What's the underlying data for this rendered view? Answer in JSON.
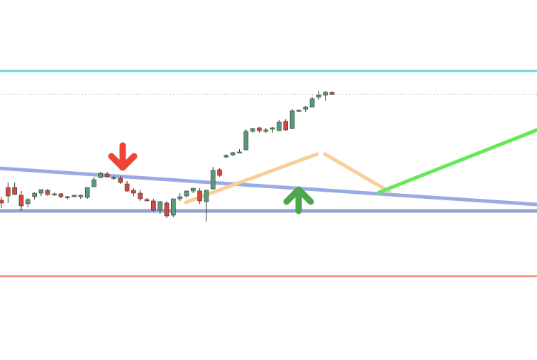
{
  "chart_data": {
    "type": "candlestick",
    "colors": {
      "background": "#ffffff",
      "up_candle": "#5b9a78",
      "down_candle": "#d9453c",
      "wick": "#333333",
      "resistance_line": "#6fd6d6",
      "support_line": "#f08c80",
      "horizontal_blue": "#94a3d7",
      "trend_blue": "#9aabe3",
      "last_price_dotted": "#c8785a",
      "orange_path": "#f9cf97",
      "green_projection": "#66e85a",
      "red_arrow": "#ee4438",
      "green_arrow": "#4ca64c"
    },
    "candles": [
      {
        "o": 15,
        "h": 20,
        "l": 4,
        "c": 11
      },
      {
        "o": 33,
        "h": 40,
        "l": 11,
        "c": 21
      },
      {
        "o": 33,
        "h": 40,
        "l": 25,
        "c": 23
      },
      {
        "o": 22,
        "h": 28,
        "l": 0,
        "c": 7
      },
      {
        "o": 10,
        "h": 18,
        "l": 5,
        "c": 16
      },
      {
        "o": 20,
        "h": 26,
        "l": 16,
        "c": 25
      },
      {
        "o": 25,
        "h": 30,
        "l": 21,
        "c": 30
      },
      {
        "o": 29,
        "h": 31,
        "l": 21,
        "c": 23
      },
      {
        "o": 24,
        "h": 26,
        "l": 21,
        "c": 24
      },
      {
        "o": 24,
        "h": 25,
        "l": 18,
        "c": 20
      },
      {
        "o": 20,
        "h": 21,
        "l": 16,
        "c": 19
      },
      {
        "o": 20,
        "h": 23,
        "l": 19,
        "c": 22
      },
      {
        "o": 20,
        "h": 23,
        "l": 17,
        "c": 22
      },
      {
        "o": 19,
        "h": 30,
        "l": 17,
        "c": 33
      },
      {
        "o": 34,
        "h": 48,
        "l": 34,
        "c": 44
      },
      {
        "o": 47,
        "h": 55,
        "l": 46,
        "c": 53
      },
      {
        "o": 52,
        "h": 55,
        "l": 47,
        "c": 48
      },
      {
        "o": 46,
        "h": 49,
        "l": 44,
        "c": 47
      },
      {
        "o": 46,
        "h": 49,
        "l": 38,
        "c": 40
      },
      {
        "o": 38,
        "h": 42,
        "l": 27,
        "c": 28
      },
      {
        "o": 29,
        "h": 32,
        "l": 20,
        "c": 25
      },
      {
        "o": 25,
        "h": 30,
        "l": 14,
        "c": 17
      },
      {
        "o": 16,
        "h": 18,
        "l": 14,
        "c": 14
      },
      {
        "o": 14,
        "h": 17,
        "l": -1,
        "c": 1
      },
      {
        "o": 1,
        "h": 14,
        "l": -4,
        "c": 13
      },
      {
        "o": 11,
        "h": 14,
        "l": -10,
        "c": -7
      },
      {
        "o": -6,
        "h": 15,
        "l": -9,
        "c": 17
      },
      {
        "o": 17,
        "h": 25,
        "l": 14,
        "c": 20
      },
      {
        "o": 21,
        "h": 29,
        "l": 19,
        "c": 28
      },
      {
        "o": 28,
        "h": 32,
        "l": 25,
        "c": 32
      },
      {
        "o": 28,
        "h": 32,
        "l": 10,
        "c": 14
      },
      {
        "o": 13,
        "h": 30,
        "l": -15,
        "c": 29
      },
      {
        "o": 31,
        "h": 62,
        "l": 30,
        "c": 57
      },
      {
        "o": 58,
        "h": 60,
        "l": 48,
        "c": 50
      },
      {
        "o": 76,
        "h": 80,
        "l": 74,
        "c": 78
      },
      {
        "o": 79,
        "h": 83,
        "l": 77,
        "c": 82
      },
      {
        "o": 83,
        "h": 87,
        "l": 81,
        "c": 83
      },
      {
        "o": 86,
        "h": 115,
        "l": 85,
        "c": 112
      },
      {
        "o": 112,
        "h": 117,
        "l": 110,
        "c": 116
      },
      {
        "o": 117,
        "h": 118,
        "l": 110,
        "c": 113
      },
      {
        "o": 112,
        "h": 117,
        "l": 110,
        "c": 114
      },
      {
        "o": 115,
        "h": 118,
        "l": 110,
        "c": 117
      },
      {
        "o": 113,
        "h": 128,
        "l": 113,
        "c": 125
      },
      {
        "o": 126,
        "h": 129,
        "l": 113,
        "c": 114
      },
      {
        "o": 116,
        "h": 143,
        "l": 115,
        "c": 141
      },
      {
        "o": 140,
        "h": 142,
        "l": 139,
        "c": 142
      },
      {
        "o": 143,
        "h": 148,
        "l": 139,
        "c": 146
      },
      {
        "o": 146,
        "h": 160,
        "l": 146,
        "c": 158
      },
      {
        "o": 160,
        "h": 169,
        "l": 156,
        "c": 163
      },
      {
        "o": 163,
        "h": 169,
        "l": 155,
        "c": 167
      },
      {
        "o": 167,
        "h": 168,
        "l": 163,
        "c": 164
      }
    ],
    "horizontal_levels": [
      {
        "name": "resistance",
        "value": 197
      },
      {
        "name": "last_price",
        "value": 164
      },
      {
        "name": "support_blue",
        "value": 0
      },
      {
        "name": "support_red",
        "value": -92
      }
    ],
    "ylim": [
      -210,
      297
    ],
    "grid": false,
    "legend": "none"
  }
}
